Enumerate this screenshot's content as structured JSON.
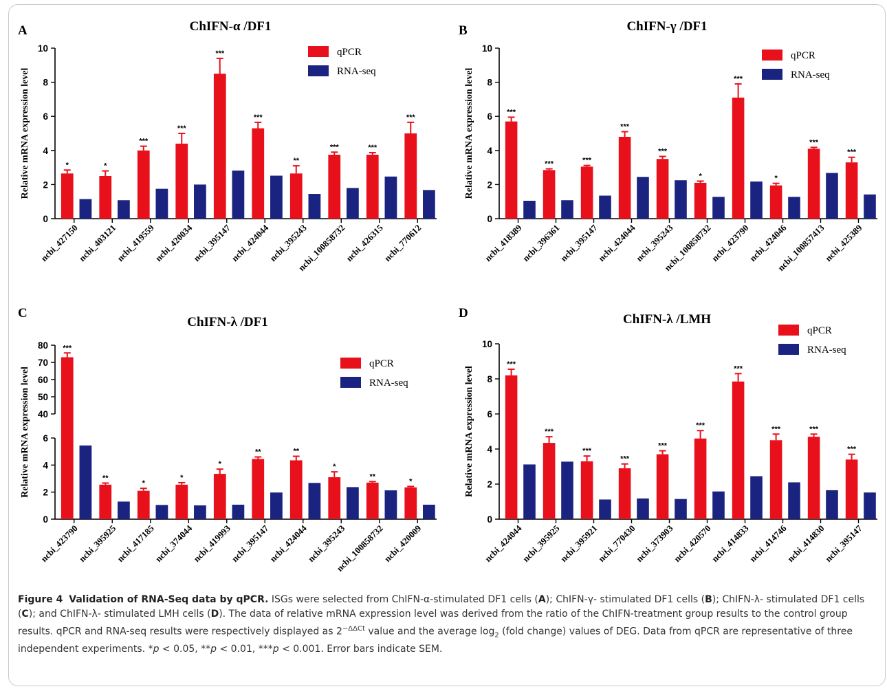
{
  "colors": {
    "qpcr": "#e8101b",
    "rnaseq": "#1b2380",
    "axis": "#000000"
  },
  "chart_data": [
    {
      "type": "bar",
      "panel": "A",
      "title": "ChIFN-α /DF1",
      "ylabel": "Relative mRNA expression level",
      "ylim": [
        0,
        10
      ],
      "yticks": [
        0,
        2,
        4,
        6,
        8,
        10
      ],
      "legend_position": "top-right",
      "categories": [
        "ncbi_427150",
        "ncbi_403121",
        "ncbi_419559",
        "ncbi_420034",
        "ncbi_395147",
        "ncbi_424044",
        "ncbi_395243",
        "ncbi_100858732",
        "ncbi_426315",
        "ncbi_770612"
      ],
      "series": [
        {
          "name": "qPCR",
          "values": [
            2.65,
            2.5,
            4.0,
            4.4,
            8.5,
            5.3,
            2.65,
            3.75,
            3.75,
            5.0
          ],
          "errors": [
            0.2,
            0.3,
            0.25,
            0.6,
            0.9,
            0.35,
            0.45,
            0.15,
            0.12,
            0.65
          ]
        },
        {
          "name": "RNA-seq",
          "values": [
            1.15,
            1.08,
            1.75,
            2.0,
            2.82,
            2.52,
            1.45,
            1.8,
            2.47,
            1.68
          ]
        }
      ],
      "significance": [
        "*",
        "*",
        "***",
        "***",
        "***",
        "***",
        "**",
        "***",
        "***",
        "***"
      ]
    },
    {
      "type": "bar",
      "panel": "B",
      "title": "ChIFN-γ /DF1",
      "ylabel": "Relative mRNA expression level",
      "ylim": [
        0,
        10
      ],
      "yticks": [
        0,
        2,
        4,
        6,
        8,
        10
      ],
      "legend_position": "top-right",
      "categories": [
        "ncbi_418389",
        "ncbi_396361",
        "ncbi_395147",
        "ncbi_424044",
        "ncbi_395243",
        "ncbi_100858732",
        "ncbi_423790",
        "ncbi_424046",
        "ncbi_100857413",
        "ncbi_425389"
      ],
      "series": [
        {
          "name": "qPCR",
          "values": [
            5.7,
            2.85,
            3.05,
            4.8,
            3.5,
            2.1,
            7.1,
            1.95,
            4.1,
            3.3
          ],
          "errors": [
            0.25,
            0.07,
            0.07,
            0.3,
            0.15,
            0.1,
            0.8,
            0.12,
            0.08,
            0.3
          ]
        },
        {
          "name": "RNA-seq",
          "values": [
            1.05,
            1.08,
            1.35,
            2.45,
            2.25,
            1.28,
            2.18,
            1.28,
            2.68,
            1.42
          ]
        }
      ],
      "significance": [
        "***",
        "***",
        "***",
        "***",
        "***",
        "*",
        "***",
        "*",
        "***",
        "***"
      ]
    },
    {
      "type": "bar",
      "panel": "C",
      "title": "ChIFN-λ /DF1",
      "ylabel": "Relative mRNA expression level",
      "ylim": [
        0,
        80
      ],
      "axis_break": [
        6,
        40
      ],
      "yticks": [
        0,
        2,
        4,
        6,
        40,
        50,
        60,
        70,
        80
      ],
      "legend_position": "top-right",
      "categories": [
        "ncbi_423790",
        "ncbi_395925",
        "ncbi_417185",
        "ncbi_374044",
        "ncbi_419993",
        "ncbi_395147",
        "ncbi_424044",
        "ncbi_395243",
        "ncbi_100858732",
        "ncbi_420009"
      ],
      "series": [
        {
          "name": "qPCR",
          "values": [
            73,
            2.55,
            2.1,
            2.55,
            3.35,
            4.45,
            4.35,
            3.1,
            2.7,
            2.35
          ],
          "errors": [
            2.5,
            0.12,
            0.18,
            0.15,
            0.35,
            0.15,
            0.3,
            0.4,
            0.08,
            0.07
          ]
        },
        {
          "name": "RNA-seq",
          "values": [
            5.45,
            1.3,
            1.05,
            1.02,
            1.07,
            1.97,
            2.68,
            2.37,
            2.13,
            1.07
          ]
        }
      ],
      "significance": [
        "***",
        "**",
        "*",
        "*",
        "*",
        "**",
        "**",
        "*",
        "**",
        "*"
      ]
    },
    {
      "type": "bar",
      "panel": "D",
      "title": "ChIFN-λ /LMH",
      "ylabel": "Relative mRNA expression level",
      "ylim": [
        0,
        10
      ],
      "yticks": [
        0,
        2,
        4,
        6,
        8,
        10
      ],
      "legend_position": "top-right",
      "categories": [
        "ncbi_424044",
        "ncbi_395925",
        "ncbi_395921",
        "ncbi_770430",
        "ncbi_373903",
        "ncbi_420570",
        "ncbi_414833",
        "ncbi_414746",
        "ncbi_414830",
        "ncbi_395147"
      ],
      "series": [
        {
          "name": "qPCR",
          "values": [
            8.2,
            4.35,
            3.3,
            2.9,
            3.7,
            4.6,
            7.85,
            4.5,
            4.7,
            3.4
          ],
          "errors": [
            0.35,
            0.35,
            0.3,
            0.25,
            0.2,
            0.45,
            0.45,
            0.35,
            0.15,
            0.3
          ]
        },
        {
          "name": "RNA-seq",
          "values": [
            3.12,
            3.28,
            1.12,
            1.18,
            1.15,
            1.58,
            2.45,
            2.1,
            1.65,
            1.52
          ]
        }
      ],
      "significance": [
        "***",
        "***",
        "***",
        "***",
        "***",
        "***",
        "***",
        "***",
        "***",
        "***"
      ]
    }
  ],
  "caption": {
    "figure_label": "Figure 4",
    "title": "Validation of RNA-Seq data by qPCR.",
    "text_1": "ISGs were selected from ChIFN-α-stimulated DF1 cells (",
    "panel_a": "A",
    "text_2": "); ChIFN-γ- stimulated DF1 cells (",
    "panel_b": "B",
    "text_3": "); ChIFN-λ- stimulated DF1 cells (",
    "panel_c": "C",
    "text_4": "); and ChIFN-λ- stimulated LMH cells (",
    "panel_d": "D",
    "text_5": "). The data of relative mRNA expression level was derived from the ratio of the ChIFN-treatment group results to the control group results. qPCR and RNA-seq results were respectively displayed as 2",
    "exponent": "−ΔΔCt",
    "text_6": " value and the average log",
    "log_sub": "2",
    "text_7": " (fold change) values of DEG. Data from qPCR are representative of three independent experiments. *",
    "p1": "p",
    "text_8": " < 0.05, **",
    "p2": "p",
    "text_9": " < 0.01, ***",
    "p3": "p",
    "text_10": " < 0.001. Error bars indicate SEM."
  }
}
